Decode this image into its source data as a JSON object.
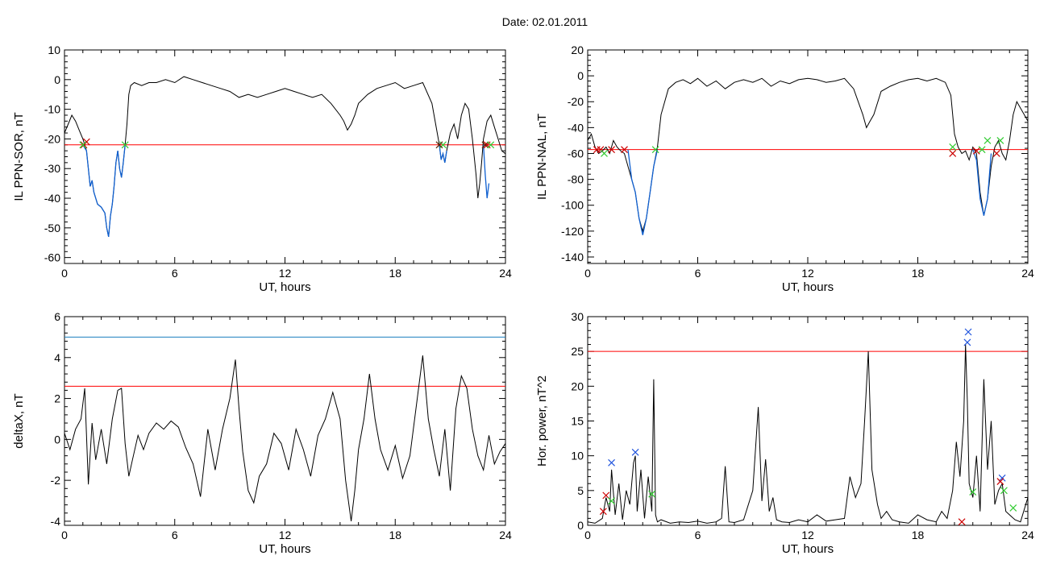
{
  "figure": {
    "title": "Date:  02.01.2011"
  },
  "colors": {
    "trace": "#000000",
    "threshold_red": "#ff0000",
    "threshold_blue": "#1a7fbf",
    "segment_blue": "#1060d0",
    "marker_red": "#cc0000",
    "marker_green": "#33cc33",
    "marker_blue": "#2255dd"
  },
  "chart_data": [
    {
      "id": "p1",
      "type": "line",
      "xlabel": "UT, hours",
      "ylabel": "IL PPN-SOR, nT",
      "xlim": [
        0,
        24
      ],
      "ylim": [
        -62,
        10
      ],
      "xticks": [
        0,
        6,
        12,
        18,
        24
      ],
      "yticks": [
        10,
        0,
        -10,
        -20,
        -30,
        -40,
        -50,
        -60
      ],
      "threshold": -22,
      "series": [
        {
          "style": "black",
          "x": [
            0,
            0.2,
            0.4,
            0.6,
            0.8,
            1.0,
            1.1,
            1.2,
            1.3,
            1.4,
            1.5,
            1.6,
            1.8,
            2.0,
            2.2,
            2.3,
            2.4,
            2.5,
            2.6,
            2.7,
            2.8,
            2.9,
            3.0,
            3.1,
            3.2,
            3.3,
            3.4,
            3.5,
            3.6,
            3.8,
            4.2,
            4.6,
            5.0,
            5.5,
            6.0,
            6.5,
            7.0,
            7.5,
            8.0,
            8.5,
            9.0,
            9.5,
            10.0,
            10.5,
            11.0,
            11.5,
            12.0,
            12.5,
            13.0,
            13.5,
            14.0,
            14.5,
            15.0,
            15.2,
            15.4,
            15.6,
            15.8,
            16.0,
            16.5,
            17.0,
            17.5,
            18.0,
            18.5,
            19.0,
            19.5,
            20.0,
            20.2,
            20.4,
            20.5,
            20.6,
            20.7,
            20.8,
            21.0,
            21.2,
            21.4,
            21.6,
            21.8,
            22.0,
            22.2,
            22.4,
            22.5,
            22.6,
            22.7,
            22.8,
            23.0,
            23.2,
            23.4,
            23.6,
            23.8,
            24.0
          ],
          "y": [
            -18,
            -15,
            -12,
            -14,
            -17,
            -20,
            -22,
            -24,
            -30,
            -36,
            -34,
            -38,
            -42,
            -43,
            -45,
            -50,
            -53,
            -46,
            -42,
            -36,
            -28,
            -24,
            -30,
            -33,
            -28,
            -22,
            -15,
            -5,
            -2,
            -1,
            -2,
            -1,
            -1,
            0,
            -1,
            1,
            0,
            -1,
            -2,
            -3,
            -4,
            -6,
            -5,
            -6,
            -5,
            -4,
            -3,
            -4,
            -5,
            -6,
            -5,
            -8,
            -12,
            -14,
            -17,
            -15,
            -12,
            -8,
            -5,
            -3,
            -2,
            -1,
            -3,
            -2,
            -1,
            -8,
            -15,
            -22,
            -27,
            -25,
            -28,
            -24,
            -18,
            -15,
            -20,
            -12,
            -8,
            -10,
            -20,
            -32,
            -40,
            -35,
            -28,
            -20,
            -14,
            -12,
            -16,
            -20,
            -24,
            -25
          ]
        },
        {
          "style": "blue",
          "x": [
            1.0,
            1.1,
            1.2,
            1.3,
            1.4,
            1.5,
            1.6,
            1.8,
            2.0,
            2.2,
            2.3,
            2.4,
            2.5,
            2.6,
            2.7,
            2.8,
            2.9,
            3.0,
            3.1,
            3.2,
            3.3
          ],
          "y": [
            -22,
            -23,
            -24,
            -30,
            -36,
            -34,
            -38,
            -42,
            -43,
            -45,
            -50,
            -53,
            -46,
            -42,
            -36,
            -28,
            -24,
            -30,
            -33,
            -28,
            -22
          ]
        },
        {
          "style": "blue",
          "x": [
            20.4,
            20.5,
            20.6,
            20.7,
            20.8
          ],
          "y": [
            -22,
            -27,
            -25,
            -28,
            -24
          ]
        },
        {
          "style": "blue",
          "x": [
            22.8,
            22.9,
            23.0,
            23.1
          ],
          "y": [
            -22,
            -32,
            -40,
            -35
          ]
        }
      ],
      "markers": [
        {
          "color": "red",
          "x": [
            1.05,
            1.2
          ],
          "y": [
            -22,
            -21
          ]
        },
        {
          "color": "green",
          "x": [
            1.0,
            3.3,
            20.6
          ],
          "y": [
            -22,
            -22,
            -22
          ]
        },
        {
          "color": "dark",
          "x": [
            20.4,
            22.9
          ],
          "y": [
            -22,
            -22
          ]
        },
        {
          "color": "red",
          "x": [
            23.0
          ],
          "y": [
            -22
          ]
        },
        {
          "color": "green",
          "x": [
            23.2
          ],
          "y": [
            -22
          ]
        }
      ]
    },
    {
      "id": "p2",
      "type": "line",
      "xlabel": "UT, hours",
      "ylabel": "IL PPN-NAL, nT",
      "xlim": [
        0,
        24
      ],
      "ylim": [
        -145,
        20
      ],
      "xticks": [
        0,
        6,
        12,
        18,
        24
      ],
      "yticks": [
        20,
        0,
        -20,
        -40,
        -60,
        -80,
        -100,
        -120,
        -140
      ],
      "threshold": -57,
      "series": [
        {
          "style": "black",
          "x": [
            0,
            0.2,
            0.4,
            0.6,
            0.8,
            1.0,
            1.2,
            1.4,
            1.6,
            1.8,
            2.0,
            2.2,
            2.4,
            2.6,
            2.8,
            3.0,
            3.2,
            3.4,
            3.6,
            3.8,
            4.0,
            4.4,
            4.8,
            5.2,
            5.6,
            6.0,
            6.5,
            7.0,
            7.5,
            8.0,
            8.5,
            9.0,
            9.5,
            10.0,
            10.5,
            11.0,
            11.5,
            12.0,
            12.5,
            13.0,
            13.5,
            14.0,
            14.5,
            15.0,
            15.2,
            15.4,
            15.6,
            16.0,
            16.5,
            17.0,
            17.5,
            18.0,
            18.5,
            19.0,
            19.5,
            19.8,
            20.0,
            20.2,
            20.4,
            20.6,
            20.8,
            21.0,
            21.2,
            21.4,
            21.6,
            21.8,
            22.0,
            22.2,
            22.4,
            22.6,
            22.8,
            23.0,
            23.2,
            23.4,
            23.6,
            23.8,
            24.0
          ],
          "y": [
            -50,
            -45,
            -55,
            -60,
            -58,
            -55,
            -60,
            -50,
            -55,
            -58,
            -60,
            -70,
            -80,
            -90,
            -110,
            -120,
            -110,
            -90,
            -70,
            -55,
            -30,
            -10,
            -5,
            -3,
            -6,
            -2,
            -8,
            -4,
            -10,
            -5,
            -3,
            -5,
            -2,
            -8,
            -4,
            -6,
            -3,
            -2,
            -3,
            -5,
            -4,
            -2,
            -10,
            -30,
            -40,
            -35,
            -30,
            -12,
            -8,
            -5,
            -3,
            -2,
            -4,
            -2,
            -5,
            -15,
            -45,
            -55,
            -60,
            -58,
            -65,
            -55,
            -60,
            -90,
            -108,
            -95,
            -70,
            -55,
            -50,
            -60,
            -65,
            -50,
            -30,
            -20,
            -25,
            -30,
            -35
          ]
        },
        {
          "style": "blue",
          "x": [
            2.2,
            2.4,
            2.6,
            2.8,
            3.0,
            3.2,
            3.4,
            3.6,
            3.8
          ],
          "y": [
            -57,
            -80,
            -90,
            -110,
            -123,
            -110,
            -90,
            -70,
            -57
          ]
        },
        {
          "style": "blue",
          "x": [
            21.0,
            21.2,
            21.4,
            21.6,
            21.8,
            22.0
          ],
          "y": [
            -57,
            -65,
            -95,
            -108,
            -95,
            -60
          ]
        }
      ],
      "markers": [
        {
          "color": "red",
          "x": [
            0.5,
            0.7,
            1.3,
            2.0,
            19.9,
            21.2,
            22.3
          ],
          "y": [
            -57,
            -57,
            -57,
            -57,
            -60,
            -58,
            -60
          ]
        },
        {
          "color": "green",
          "x": [
            0.9,
            3.7,
            19.9,
            21.5,
            21.8,
            22.5
          ],
          "y": [
            -60,
            -57,
            -55,
            -57,
            -50,
            -50
          ]
        }
      ]
    },
    {
      "id": "p3",
      "type": "line",
      "xlabel": "UT, hours",
      "ylabel": "deltaX, nT",
      "xlim": [
        0,
        24
      ],
      "ylim": [
        -4.2,
        6
      ],
      "xticks": [
        0,
        6,
        12,
        18,
        24
      ],
      "yticks": [
        6,
        4,
        2,
        0,
        -2,
        -4
      ],
      "threshold": 2.6,
      "threshold2": 5.0,
      "series": [
        {
          "style": "black",
          "x": [
            0,
            0.3,
            0.6,
            0.9,
            1.1,
            1.3,
            1.5,
            1.7,
            2.0,
            2.3,
            2.6,
            2.9,
            3.1,
            3.3,
            3.5,
            3.7,
            4.0,
            4.3,
            4.6,
            5.0,
            5.4,
            5.8,
            6.2,
            6.6,
            7.0,
            7.4,
            7.8,
            8.2,
            8.6,
            9.0,
            9.3,
            9.5,
            9.7,
            10.0,
            10.3,
            10.6,
            11.0,
            11.4,
            11.8,
            12.2,
            12.6,
            13.0,
            13.4,
            13.8,
            14.2,
            14.6,
            15.0,
            15.3,
            15.6,
            15.8,
            16.0,
            16.3,
            16.6,
            16.9,
            17.2,
            17.6,
            18.0,
            18.4,
            18.8,
            19.2,
            19.5,
            19.8,
            20.1,
            20.4,
            20.7,
            21.0,
            21.3,
            21.6,
            21.9,
            22.2,
            22.5,
            22.8,
            23.1,
            23.4,
            23.7,
            24.0
          ],
          "y": [
            0.3,
            -0.5,
            0.5,
            1.0,
            2.5,
            -2.2,
            0.8,
            -1.0,
            0.5,
            -1.2,
            1.0,
            2.4,
            2.5,
            -0.2,
            -1.8,
            -1.0,
            0.2,
            -0.5,
            0.3,
            0.8,
            0.5,
            0.9,
            0.6,
            -0.4,
            -1.2,
            -2.8,
            0.5,
            -1.5,
            0.5,
            2.0,
            3.9,
            1.5,
            -0.6,
            -2.5,
            -3.1,
            -1.8,
            -1.2,
            0.3,
            -0.2,
            -1.5,
            0.5,
            -0.5,
            -1.8,
            0.2,
            1.0,
            2.3,
            1.0,
            -2.0,
            -4.0,
            -2.5,
            -0.5,
            1.0,
            3.2,
            1.0,
            -0.5,
            -1.5,
            -0.3,
            -1.9,
            -0.8,
            2.0,
            4.1,
            1.0,
            -0.5,
            -1.8,
            0.5,
            -2.5,
            1.5,
            3.1,
            2.5,
            0.5,
            -0.8,
            -1.5,
            0.2,
            -1.2,
            -0.6,
            -0.2
          ]
        }
      ],
      "markers": []
    },
    {
      "id": "p4",
      "type": "line",
      "xlabel": "UT, hours",
      "ylabel": "Hor. power, nT^2",
      "xlim": [
        0,
        24
      ],
      "ylim": [
        0,
        30
      ],
      "xticks": [
        0,
        6,
        12,
        18,
        24
      ],
      "yticks": [
        30,
        25,
        20,
        15,
        10,
        5,
        0
      ],
      "threshold": 25,
      "series": [
        {
          "style": "black",
          "x": [
            0,
            0.4,
            0.8,
            1.0,
            1.2,
            1.3,
            1.5,
            1.7,
            1.9,
            2.1,
            2.3,
            2.5,
            2.6,
            2.7,
            2.9,
            3.1,
            3.3,
            3.5,
            3.6,
            3.7,
            3.8,
            4.0,
            4.5,
            5.0,
            5.5,
            6.0,
            6.5,
            7.0,
            7.3,
            7.5,
            7.7,
            8.0,
            8.5,
            9.0,
            9.3,
            9.5,
            9.7,
            9.9,
            10.1,
            10.3,
            10.6,
            11.0,
            11.5,
            12.0,
            12.5,
            13.0,
            13.5,
            14.0,
            14.3,
            14.6,
            14.9,
            15.1,
            15.3,
            15.5,
            15.8,
            16.0,
            16.3,
            16.6,
            17.0,
            17.5,
            18.0,
            18.5,
            19.0,
            19.3,
            19.6,
            19.9,
            20.1,
            20.3,
            20.5,
            20.6,
            20.7,
            20.8,
            21.0,
            21.2,
            21.4,
            21.6,
            21.8,
            22.0,
            22.2,
            22.4,
            22.6,
            22.8,
            23.0,
            23.3,
            23.6,
            24.0
          ],
          "y": [
            0.5,
            0.3,
            1.0,
            4.0,
            2.0,
            8.0,
            1.5,
            6.0,
            0.8,
            5.0,
            3.0,
            9.0,
            10.0,
            2.0,
            8.0,
            1.0,
            7.0,
            2.0,
            21.0,
            1.5,
            0.5,
            0.8,
            0.3,
            0.5,
            0.4,
            0.6,
            0.3,
            0.5,
            1.0,
            8.5,
            0.5,
            0.4,
            0.8,
            5.0,
            17.0,
            3.5,
            9.5,
            2.0,
            4.0,
            0.8,
            0.5,
            0.4,
            0.8,
            0.5,
            1.5,
            0.6,
            0.8,
            1.0,
            7.0,
            4.0,
            6.0,
            15.0,
            25.0,
            8.0,
            3.0,
            1.0,
            2.0,
            0.8,
            0.5,
            0.3,
            1.5,
            0.8,
            0.5,
            2.0,
            1.0,
            5.0,
            12.0,
            7.0,
            15.0,
            26.0,
            18.0,
            6.0,
            4.0,
            10.0,
            2.0,
            21.0,
            8.0,
            15.0,
            3.0,
            5.0,
            6.0,
            2.0,
            1.5,
            0.8,
            0.5,
            4.0
          ]
        }
      ],
      "markers": [
        {
          "color": "blue",
          "x": [
            1.3,
            2.6,
            20.7,
            20.75,
            22.6
          ],
          "y": [
            9.0,
            10.5,
            26.3,
            27.8,
            6.8
          ]
        },
        {
          "color": "red",
          "x": [
            0.85,
            1.0,
            20.4,
            22.5
          ],
          "y": [
            2.0,
            4.3,
            0.5,
            6.3
          ]
        },
        {
          "color": "green",
          "x": [
            1.3,
            3.5,
            21.0,
            22.7,
            23.2
          ],
          "y": [
            3.5,
            4.5,
            4.8,
            5.0,
            2.5
          ]
        }
      ]
    }
  ]
}
